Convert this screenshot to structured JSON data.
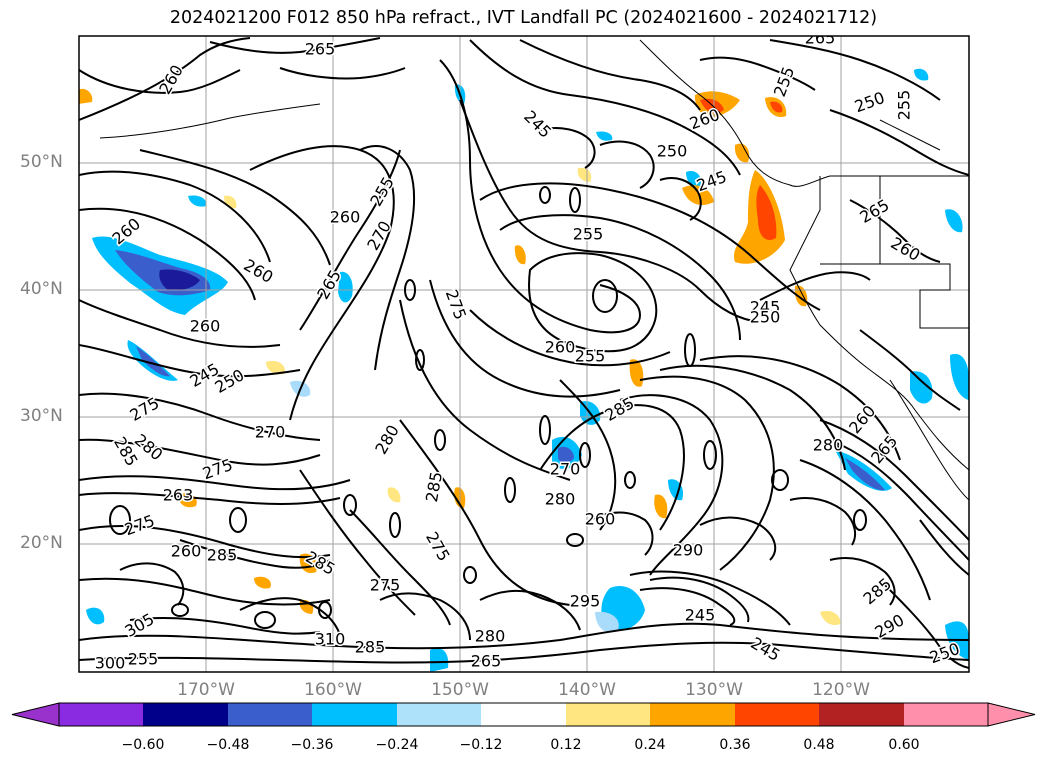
{
  "title": "2024021200 F012 850 hPa refract., IVT Landfall PC (2024021600 - 2024021712)",
  "map": {
    "lat_labels": [
      "50°N",
      "40°N",
      "30°N",
      "20°N"
    ],
    "lon_labels": [
      "170°W",
      "160°W",
      "150°W",
      "140°W",
      "130°W",
      "120°W"
    ],
    "contour_labels": [
      "260",
      "265",
      "260",
      "265",
      "245",
      "250",
      "255",
      "260",
      "255",
      "260",
      "270",
      "265",
      "255",
      "250",
      "255",
      "260",
      "245",
      "260",
      "265",
      "260",
      "245",
      "250",
      "275",
      "245",
      "250",
      "255",
      "260",
      "275",
      "270",
      "280",
      "285",
      "285",
      "275",
      "263",
      "275",
      "260",
      "285",
      "280",
      "275",
      "270",
      "280",
      "285",
      "260",
      "275",
      "285",
      "290",
      "295",
      "305",
      "310",
      "285",
      "280",
      "265",
      "300",
      "285",
      "290",
      "245",
      "245",
      "255",
      "250",
      "260",
      "265",
      "280"
    ],
    "fill_colors": {
      "pos_weak": "#ffe680",
      "pos_mid": "#ffa500",
      "pos_strong": "#ff4500",
      "neg_weak": "#a8dcfa",
      "neg_mid": "#00bfff",
      "neg_strong": "#3a5fcd",
      "neg_deep": "#1a1a9a"
    }
  },
  "colorbar": {
    "ticks": [
      "−0.60",
      "−0.48",
      "−0.36",
      "−0.24",
      "−0.12",
      "0.12",
      "0.24",
      "0.36",
      "0.48",
      "0.60"
    ],
    "colors": [
      "#9932cc",
      "#8a2be2",
      "#00008b",
      "#3a5fcd",
      "#00bfff",
      "#aee2fa",
      "#ffffff",
      "#ffe680",
      "#ffa500",
      "#ff4500",
      "#b22222",
      "#ff8fab"
    ]
  }
}
